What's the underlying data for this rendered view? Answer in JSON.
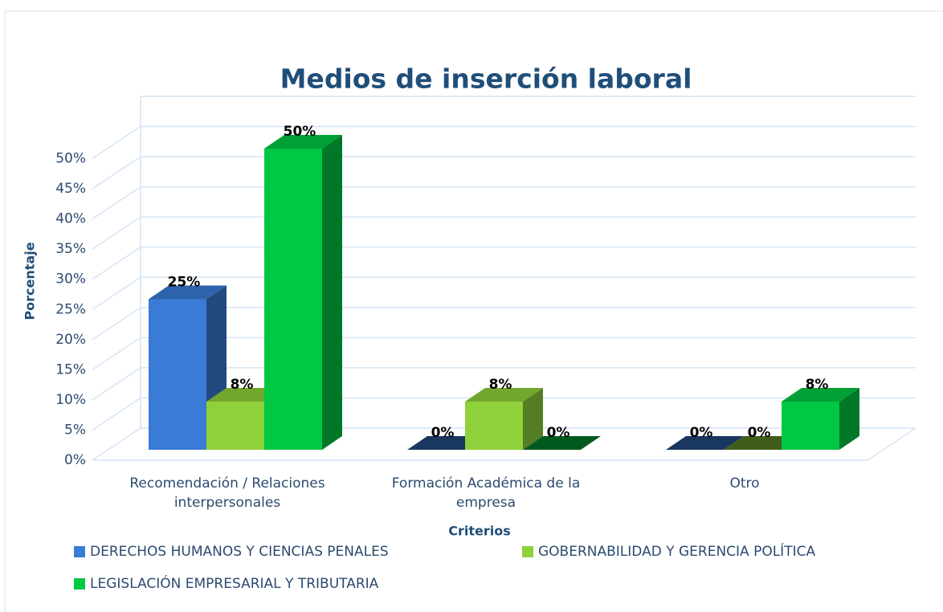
{
  "chart_data": {
    "type": "bar3d",
    "title": "Medios de inserción laboral",
    "x_label": "Criterios",
    "y_label": "Porcentaje",
    "categories": [
      "Recomendación / Relaciones interpersonales",
      "Formación Académica de la empresa",
      "Otro"
    ],
    "series": [
      {
        "name": "DERECHOS HUMANOS Y CIENCIAS PENALES",
        "color": "#3a7bd5",
        "values": [
          25,
          0,
          0
        ],
        "value_labels": [
          "25%",
          "0%",
          "0%"
        ]
      },
      {
        "name": "GOBERNABILIDAD Y GERENCIA POLÍTICA",
        "color": "#8ed13a",
        "values": [
          8,
          8,
          0
        ],
        "value_labels": [
          "8%",
          "8%",
          "0%"
        ]
      },
      {
        "name": "LEGISLACIÓN EMPRESARIAL Y TRIBUTARIA",
        "color": "#00c843",
        "values": [
          50,
          0,
          8
        ],
        "value_labels": [
          "50%",
          "0%",
          "8%"
        ]
      }
    ],
    "ylim": [
      0,
      55
    ],
    "yticks": [
      {
        "value": 0,
        "label": "0%"
      },
      {
        "value": 5,
        "label": "5%"
      },
      {
        "value": 10,
        "label": "10%"
      },
      {
        "value": 15,
        "label": "15%"
      },
      {
        "value": 20,
        "label": "20%"
      },
      {
        "value": 25,
        "label": "25%"
      },
      {
        "value": 30,
        "label": "30%"
      },
      {
        "value": 35,
        "label": "35%"
      },
      {
        "value": 40,
        "label": "40%"
      },
      {
        "value": 45,
        "label": "45%"
      },
      {
        "value": 50,
        "label": "50%"
      }
    ],
    "grid": true,
    "legend": "bottom"
  }
}
